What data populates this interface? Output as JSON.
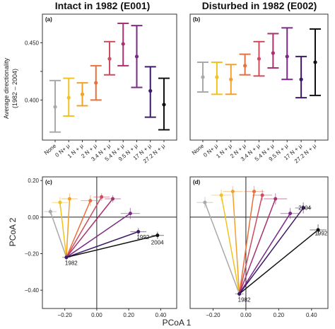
{
  "figure": {
    "top_titles": [
      "Intact in 1982 (E001)",
      "Disturbed in 1982 (E002)"
    ],
    "top_ylabel_line1": "Average directionality",
    "top_ylabel_line2": "(1982 – 2004)",
    "bottom_xlabel": "PCoA 1",
    "bottom_ylabel": "PCoA 2",
    "treatment_colors": [
      "#a9a9a9",
      "#f2c31e",
      "#f2a12c",
      "#e8703a",
      "#cf4b5e",
      "#a8316f",
      "#7a2a86",
      "#3e1a6a",
      "#111111"
    ]
  },
  "chart_data": [
    {
      "type": "errorbar",
      "panel": "(a)",
      "categories": [
        "None",
        "0 N+ μ",
        "1 N + μ",
        "2 N + μ",
        "3.4 N + μ",
        "5.4 N + μ",
        "9.5 N + μ",
        "17 N + μ",
        "27.2 N + μ"
      ],
      "values": [
        0.394,
        0.402,
        0.405,
        0.415,
        0.436,
        0.449,
        0.438,
        0.408,
        0.396
      ],
      "lower": [
        0.372,
        0.386,
        0.395,
        0.4,
        0.422,
        0.43,
        0.411,
        0.385,
        0.374
      ],
      "upper": [
        0.417,
        0.419,
        0.415,
        0.43,
        0.451,
        0.467,
        0.465,
        0.429,
        0.419
      ],
      "yticks": [
        0.4,
        0.425,
        0.45
      ],
      "ytick_labels": [
        "0.400",
        "",
        "0.450"
      ],
      "ylim": [
        0.365,
        0.475
      ]
    },
    {
      "type": "errorbar",
      "panel": "(b)",
      "categories": [
        "None",
        "0 N+ μ",
        "1 N + μ",
        "2 N + μ",
        "3.4 N + μ",
        "5.4 N + μ",
        "9.5 N + μ",
        "17 N + μ",
        "27.2 N + μ"
      ],
      "values": [
        0.42,
        0.42,
        0.418,
        0.43,
        0.436,
        0.441,
        0.438,
        0.418,
        0.433
      ],
      "lower": [
        0.407,
        0.405,
        0.405,
        0.422,
        0.421,
        0.428,
        0.418,
        0.402,
        0.404
      ],
      "upper": [
        0.433,
        0.433,
        0.431,
        0.44,
        0.451,
        0.458,
        0.463,
        0.438,
        0.462
      ],
      "ylim": [
        0.365,
        0.475
      ]
    },
    {
      "type": "scatter",
      "panel": "(c)",
      "xticks": [
        -0.2,
        0.0,
        0.2,
        0.4
      ],
      "xtick_labels": [
        "−0.20",
        "0.00",
        "0.20",
        "0.40"
      ],
      "yticks": [
        0.2,
        0.0,
        -0.2,
        -0.4
      ],
      "ytick_labels": [
        "0.20",
        "0.00",
        "−0.20",
        "−0.40"
      ],
      "xlim": [
        -0.34,
        0.5
      ],
      "ylim": [
        -0.5,
        0.22
      ],
      "origin": {
        "x": -0.19,
        "y": -0.22,
        "label": "1982"
      },
      "annotations": [
        {
          "text": "1992",
          "x": 0.25,
          "y": -0.12
        },
        {
          "text": "2004",
          "x": 0.34,
          "y": -0.15
        }
      ],
      "ends": [
        {
          "x": -0.29,
          "y": 0.03,
          "ex": 0.04,
          "ey": 0.02
        },
        {
          "x": -0.23,
          "y": 0.08,
          "ex": 0.05,
          "ey": 0.03
        },
        {
          "x": -0.17,
          "y": 0.1,
          "ex": 0.05,
          "ey": 0.03
        },
        {
          "x": -0.04,
          "y": 0.09,
          "ex": 0.06,
          "ey": 0.03
        },
        {
          "x": 0.03,
          "y": 0.11,
          "ex": 0.05,
          "ey": 0.02
        },
        {
          "x": 0.1,
          "y": 0.1,
          "ex": 0.05,
          "ey": 0.02
        },
        {
          "x": 0.21,
          "y": 0.02,
          "ex": 0.06,
          "ey": 0.03
        },
        {
          "x": 0.26,
          "y": -0.08,
          "ex": 0.05,
          "ey": 0.02
        },
        {
          "x": 0.38,
          "y": -0.1,
          "ex": 0.04,
          "ey": 0.02
        }
      ]
    },
    {
      "type": "scatter",
      "panel": "(d)",
      "xticks": [
        -0.2,
        0.0,
        0.2,
        0.4
      ],
      "xtick_labels": [
        "−0.20",
        "0.00",
        "0.20",
        "0.40"
      ],
      "xlim": [
        -0.34,
        0.5
      ],
      "ylim": [
        -0.5,
        0.22
      ],
      "origin": {
        "x": -0.04,
        "y": -0.42,
        "label": "1982"
      },
      "annotations": [
        {
          "text": "2004",
          "x": 0.32,
          "y": 0.04
        },
        {
          "text": "1992",
          "x": 0.42,
          "y": -0.1
        }
      ],
      "ends": [
        {
          "x": -0.25,
          "y": 0.08,
          "ex": 0.05,
          "ey": 0.03
        },
        {
          "x": -0.15,
          "y": 0.12,
          "ex": 0.06,
          "ey": 0.03
        },
        {
          "x": -0.08,
          "y": 0.14,
          "ex": 0.06,
          "ey": 0.03
        },
        {
          "x": 0.05,
          "y": 0.14,
          "ex": 0.06,
          "ey": 0.03
        },
        {
          "x": 0.1,
          "y": 0.12,
          "ex": 0.06,
          "ey": 0.03
        },
        {
          "x": 0.18,
          "y": 0.1,
          "ex": 0.07,
          "ey": 0.03
        },
        {
          "x": 0.27,
          "y": 0.02,
          "ex": 0.06,
          "ey": 0.03
        },
        {
          "x": 0.35,
          "y": 0.05,
          "ex": 0.05,
          "ey": 0.03
        },
        {
          "x": 0.44,
          "y": -0.07,
          "ex": 0.05,
          "ey": 0.03
        }
      ]
    }
  ]
}
